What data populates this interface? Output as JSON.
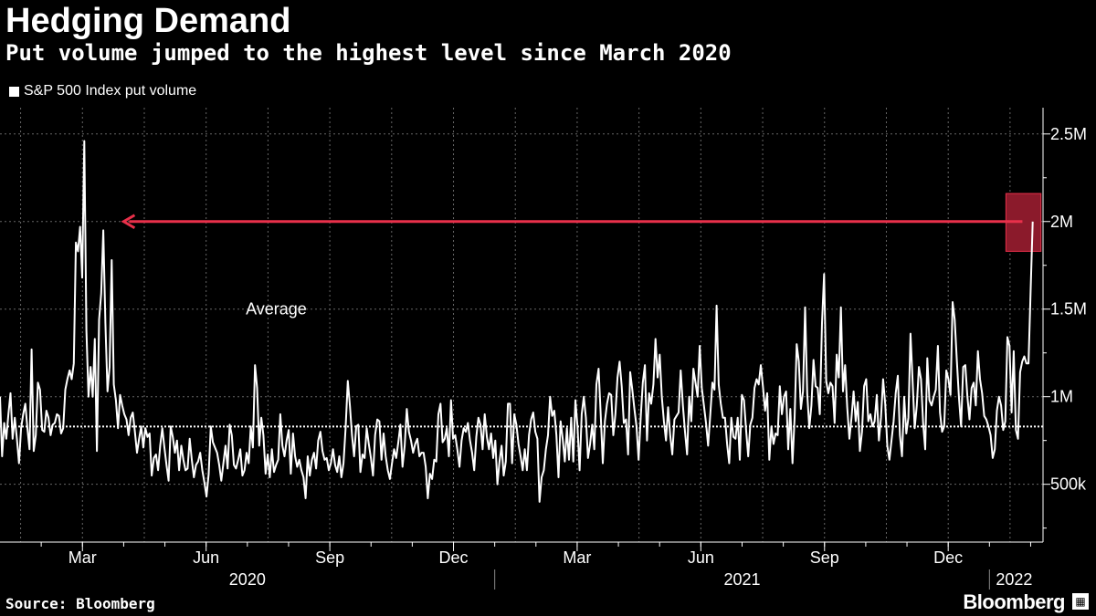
{
  "header": {
    "title": "Hedging Demand",
    "subtitle": "Put volume jumped to the highest level since March 2020"
  },
  "legend": {
    "label": "S&P 500 Index put volume"
  },
  "annotation": {
    "average_label": "Average"
  },
  "footer": {
    "source": "Source: Bloomberg",
    "brand": "Bloomberg"
  },
  "colors": {
    "background": "#000000",
    "line": "#ffffff",
    "arrow": "#e8304a",
    "highlight": "#8b1a2b",
    "grid": "#666666"
  },
  "chart_data": {
    "type": "line",
    "title": "Hedging Demand",
    "subtitle": "Put volume jumped to the highest level since March 2020",
    "series_name": "S&P 500 Index put volume",
    "x_range_months": [
      0,
      25.3
    ],
    "ylim": [
      170000,
      2650000
    ],
    "y_ticks": [
      {
        "value": 500000,
        "label": "500k"
      },
      {
        "value": 1000000,
        "label": "1M"
      },
      {
        "value": 1500000,
        "label": "1.5M"
      },
      {
        "value": 2000000,
        "label": "2M"
      },
      {
        "value": 2500000,
        "label": "2.5M"
      }
    ],
    "x_month_ticks": [
      {
        "m": 2,
        "label": "Mar"
      },
      {
        "m": 5,
        "label": "Jun"
      },
      {
        "m": 8,
        "label": "Sep"
      },
      {
        "m": 11,
        "label": "Dec"
      },
      {
        "m": 14,
        "label": "Mar"
      },
      {
        "m": 17,
        "label": "Jun"
      },
      {
        "m": 20,
        "label": "Sep"
      },
      {
        "m": 23,
        "label": "Dec"
      }
    ],
    "year_labels": [
      {
        "m": 6,
        "label": "2020"
      },
      {
        "m": 18,
        "label": "2021"
      },
      {
        "m": 24.6,
        "label": "2022"
      }
    ],
    "year_dividers": [
      12,
      24
    ],
    "average": 830000,
    "average_label": "Average",
    "annotation_arrow": {
      "from_month": 24.8,
      "to_month": 3.0,
      "value": 2000000
    },
    "highlight_box": {
      "from_month": 24.4,
      "to_month": 25.25,
      "value_low": 1830000,
      "value_high": 2160000
    },
    "values": [
      1000000,
      660000,
      850000,
      760000,
      900000,
      1020000,
      760000,
      880000,
      760000,
      620000,
      820000,
      900000,
      960000,
      820000,
      700000,
      1270000,
      690000,
      780000,
      1080000,
      1040000,
      810000,
      800000,
      920000,
      880000,
      780000,
      840000,
      850000,
      900000,
      890000,
      790000,
      820000,
      1040000,
      1100000,
      1150000,
      1100000,
      1190000,
      1880000,
      1830000,
      1970000,
      1680000,
      2460000,
      1380000,
      1000000,
      1170000,
      1000000,
      1330000,
      690000,
      1440000,
      1590000,
      1950000,
      1420000,
      1030000,
      1170000,
      1780000,
      1070000,
      980000,
      820000,
      1010000,
      950000,
      900000,
      870000,
      780000,
      880000,
      910000,
      800000,
      680000,
      760000,
      830000,
      710000,
      820000,
      770000,
      790000,
      550000,
      650000,
      670000,
      580000,
      720000,
      820000,
      710000,
      610000,
      520000,
      830000,
      770000,
      680000,
      750000,
      580000,
      720000,
      640000,
      580000,
      590000,
      760000,
      640000,
      540000,
      610000,
      630000,
      680000,
      580000,
      510000,
      430000,
      560000,
      830000,
      740000,
      710000,
      680000,
      610000,
      520000,
      620000,
      720000,
      590000,
      840000,
      780000,
      610000,
      590000,
      640000,
      700000,
      550000,
      580000,
      680000,
      620000,
      830000,
      710000,
      1180000,
      1050000,
      720000,
      880000,
      780000,
      560000,
      670000,
      540000,
      700000,
      570000,
      610000,
      640000,
      900000,
      720000,
      660000,
      750000,
      810000,
      560000,
      790000,
      660000,
      600000,
      640000,
      580000,
      540000,
      420000,
      660000,
      550000,
      640000,
      680000,
      590000,
      750000,
      800000,
      690000,
      640000,
      650000,
      580000,
      620000,
      700000,
      610000,
      570000,
      660000,
      540000,
      620000,
      820000,
      1090000,
      950000,
      780000,
      660000,
      830000,
      840000,
      570000,
      670000,
      650000,
      820000,
      730000,
      650000,
      550000,
      780000,
      870000,
      860000,
      640000,
      790000,
      660000,
      580000,
      530000,
      620000,
      700000,
      650000,
      740000,
      840000,
      600000,
      720000,
      930000,
      800000,
      750000,
      680000,
      730000,
      760000,
      660000,
      680000,
      680000,
      600000,
      420000,
      560000,
      530000,
      640000,
      630000,
      900000,
      960000,
      740000,
      760000,
      820000,
      660000,
      980000,
      760000,
      780000,
      700000,
      600000,
      750000,
      820000,
      800000,
      850000,
      750000,
      680000,
      580000,
      770000,
      880000,
      840000,
      700000,
      900000,
      770000,
      700000,
      790000,
      650000,
      750000,
      500000,
      630000,
      720000,
      550000,
      630000,
      960000,
      960000,
      620000,
      900000,
      840000,
      730000,
      660000,
      580000,
      700000,
      580000,
      780000,
      870000,
      910000,
      800000,
      760000,
      400000,
      540000,
      580000,
      700000,
      780000,
      1000000,
      890000,
      920000,
      780000,
      540000,
      860000,
      760000,
      630000,
      820000,
      640000,
      880000,
      630000,
      980000,
      830000,
      580000,
      900000,
      1000000,
      880000,
      650000,
      730000,
      840000,
      700000,
      1070000,
      1160000,
      900000,
      620000,
      860000,
      960000,
      1020000,
      1010000,
      780000,
      900000,
      1110000,
      1200000,
      1060000,
      850000,
      870000,
      670000,
      1140000,
      1040000,
      930000,
      830000,
      640000,
      880000,
      1080000,
      1180000,
      750000,
      1020000,
      960000,
      1070000,
      1330000,
      1110000,
      1240000,
      1000000,
      860000,
      750000,
      940000,
      780000,
      670000,
      870000,
      890000,
      910000,
      1150000,
      950000,
      800000,
      670000,
      1000000,
      860000,
      1160000,
      1080000,
      1000000,
      1290000,
      1050000,
      950000,
      850000,
      720000,
      900000,
      1080000,
      1040000,
      1520000,
      1070000,
      960000,
      880000,
      880000,
      730000,
      620000,
      880000,
      770000,
      760000,
      880000,
      640000,
      1010000,
      980000,
      810000,
      660000,
      840000,
      880000,
      1050000,
      1100000,
      1070000,
      1180000,
      1060000,
      920000,
      1020000,
      640000,
      830000,
      730000,
      790000,
      780000,
      1060000,
      900000,
      1000000,
      1030000,
      700000,
      930000,
      620000,
      880000,
      1300000,
      1200000,
      930000,
      1030000,
      1510000,
      1020000,
      820000,
      950000,
      1210000,
      1060000,
      1050000,
      900000,
      1420000,
      1700000,
      1090000,
      1020000,
      1080000,
      1060000,
      850000,
      1240000,
      1110000,
      1510000,
      1030000,
      1180000,
      940000,
      760000,
      880000,
      1030000,
      860000,
      970000,
      690000,
      800000,
      1060000,
      1100000,
      860000,
      900000,
      830000,
      860000,
      1010000,
      750000,
      880000,
      1100000,
      960000,
      720000,
      640000,
      750000,
      860000,
      1020000,
      1120000,
      780000,
      660000,
      1000000,
      790000,
      880000,
      1360000,
      1090000,
      820000,
      950000,
      1170000,
      1100000,
      850000,
      700000,
      1220000,
      980000,
      950000,
      1000000,
      1040000,
      1290000,
      910000,
      800000,
      830000,
      1150000,
      1100000,
      1010000,
      1540000,
      1440000,
      1210000,
      990000,
      830000,
      1170000,
      1180000,
      1000000,
      870000,
      1050000,
      1080000,
      950000,
      1260000,
      1100000,
      1020000,
      890000,
      870000,
      830000,
      780000,
      650000,
      700000,
      920000,
      1000000,
      950000,
      810000,
      860000,
      1340000,
      1290000,
      910000,
      1260000,
      810000,
      760000,
      1140000,
      1200000,
      1230000,
      1190000,
      1190000,
      1600000,
      2000000
    ]
  }
}
